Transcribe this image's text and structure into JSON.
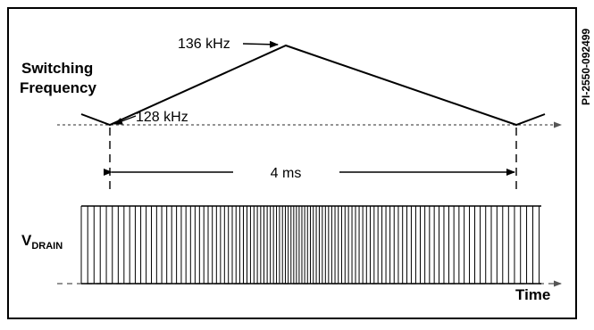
{
  "diagram": {
    "freq_label_line1": "Switching",
    "freq_label_line2": "Frequency",
    "peak_label": "136 kHz",
    "base_label": "128 kHz",
    "period_label": "4 ms",
    "vdrain_main": "V",
    "vdrain_sub": "DRAIN",
    "time_label": "Time",
    "figure_id": "PI-2550-092499",
    "colors": {
      "stroke": "#000000",
      "background": "#ffffff"
    }
  }
}
